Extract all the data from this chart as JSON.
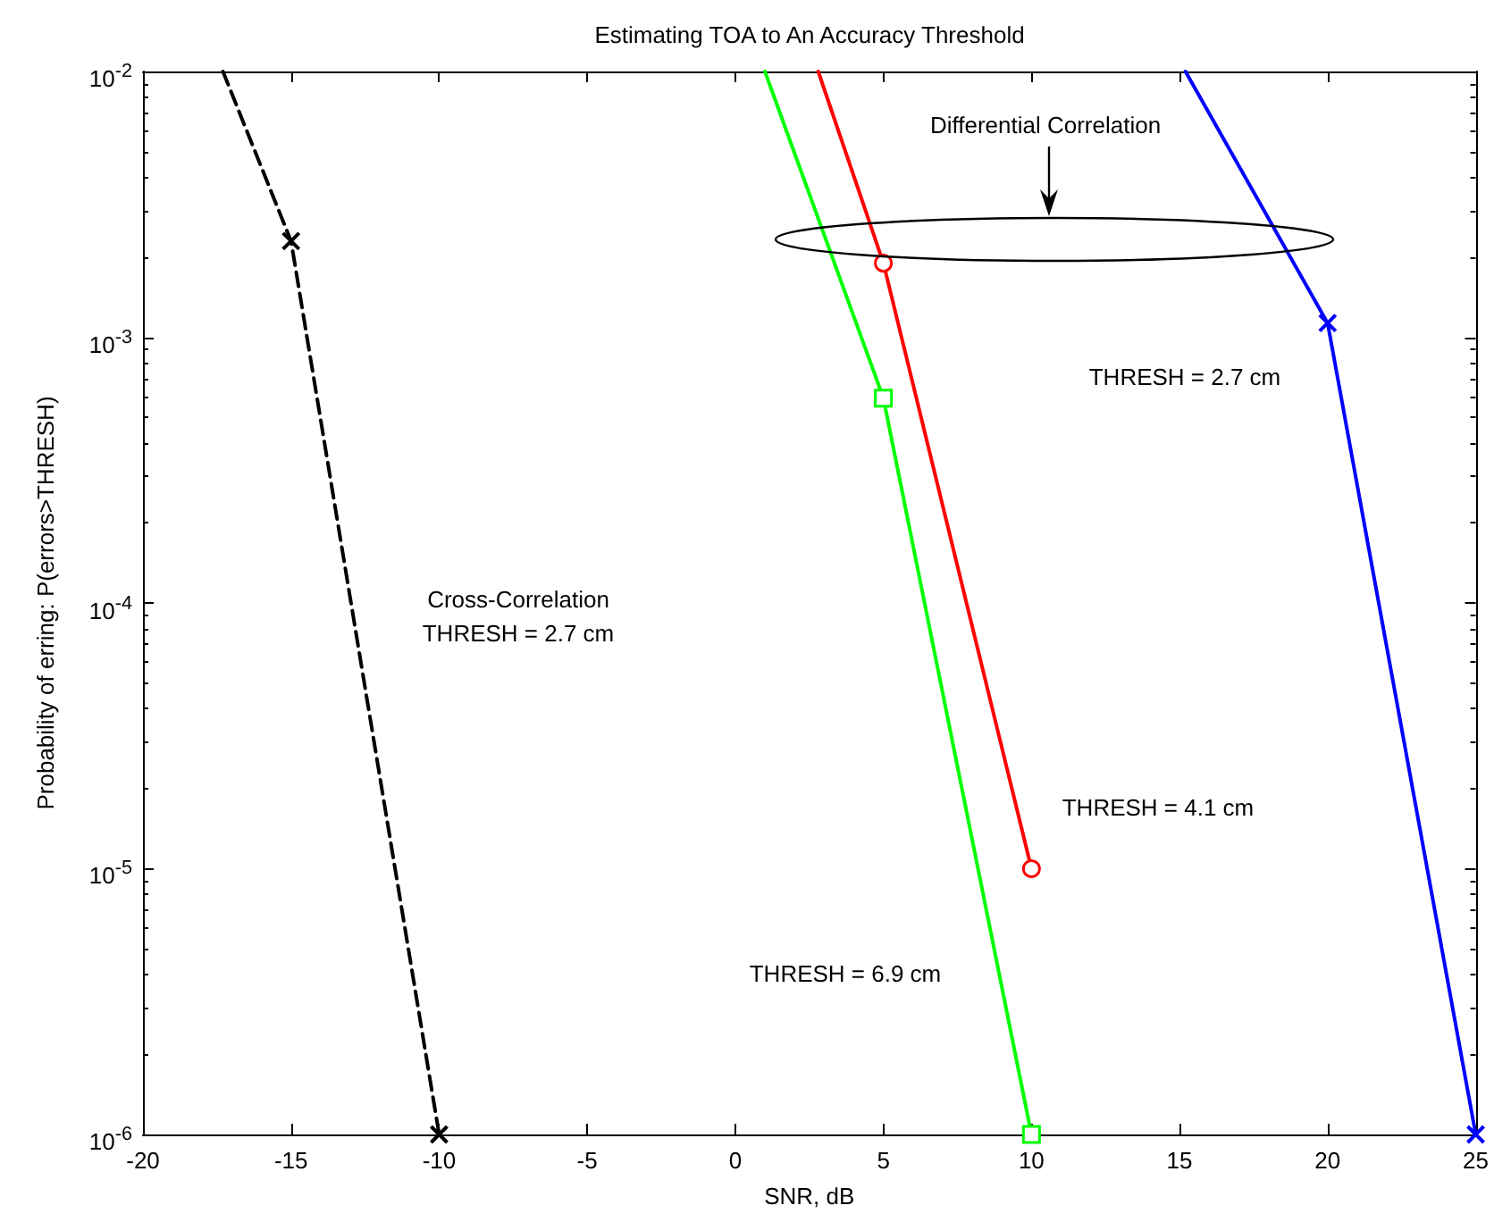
{
  "chart_data": {
    "type": "line",
    "title": "Estimating TOA to An Accuracy Threshold",
    "xlabel": "SNR, dB",
    "ylabel": "Probability of erring: P(errors>THRESH)",
    "annotations": [
      "Differential Correlation"
    ],
    "log": "y",
    "grid": false,
    "legend": false,
    "xlim": [
      -20,
      25
    ],
    "xticks": [
      -20,
      -15,
      -10,
      -5,
      0,
      5,
      10,
      15,
      20,
      25
    ],
    "ylim": [
      1e-06,
      0.01
    ],
    "yticks": [
      {
        "value": 1e-06,
        "label": "10$^{-6}$"
      },
      {
        "value": 1e-05,
        "label": "10$^{-5}$"
      },
      {
        "value": 0.0001,
        "label": "10$^{-4}$"
      },
      {
        "value": 0.001,
        "label": "10$^{-3}$"
      },
      {
        "value": 0.01,
        "label": "10$^{-2}$"
      }
    ],
    "series": [
      {
        "name": "Cross-Correlation\nTHRESH = 2.7 cm",
        "color": "#000000",
        "marker": "cross",
        "line_style": "dashed",
        "x": [
          -17.3,
          -15,
          -10
        ],
        "values": [
          0.01,
          0.0023,
          1e-06
        ]
      },
      {
        "name": "THRESH = 4.1 cm",
        "color": "#ff0000",
        "marker": "circle",
        "line_style": "solid",
        "x": [
          2.8,
          5,
          10
        ],
        "values": [
          0.01,
          0.0019,
          1e-05
        ]
      },
      {
        "name": "THRESH = 6.9 cm",
        "color": "#00ff00",
        "marker": "square",
        "line_style": "solid",
        "x": [
          1.0,
          5,
          10
        ],
        "values": [
          0.01,
          0.00059,
          1e-06
        ]
      },
      {
        "name": "THRESH = 2.7 cm",
        "color": "#0000ff",
        "marker": "cross",
        "line_style": "solid",
        "x": [
          15.2,
          20,
          25
        ],
        "values": [
          0.01,
          0.00113,
          1e-06
        ]
      }
    ]
  }
}
